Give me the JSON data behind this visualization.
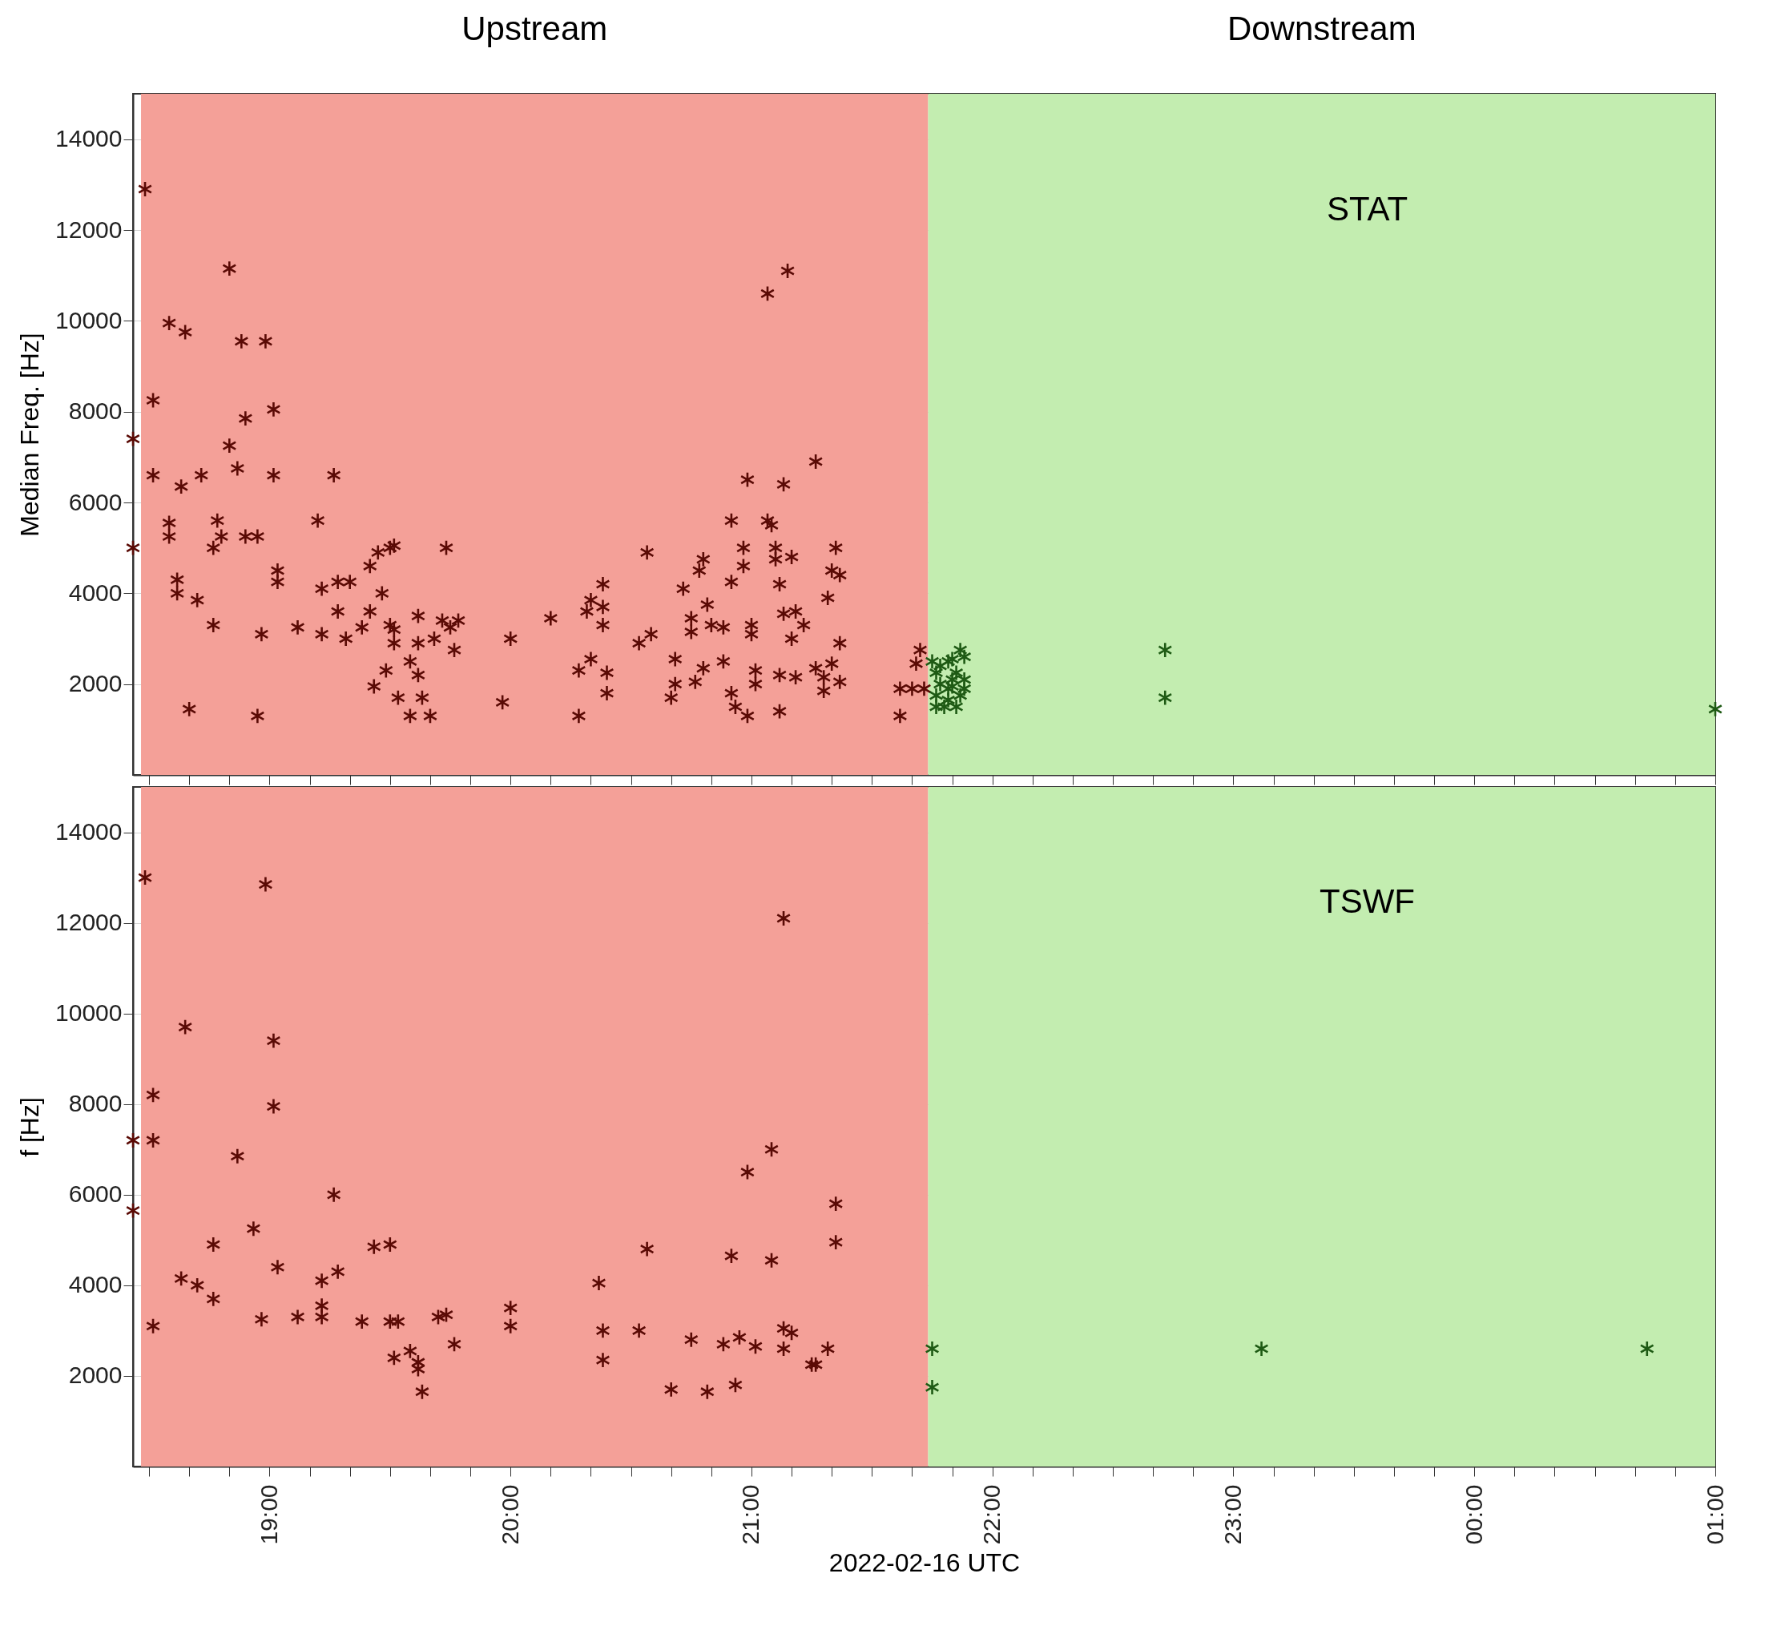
{
  "chart_data": [
    {
      "type": "scatter",
      "ylabel": "Median Freq. [Hz]",
      "annotations": [
        "STAT"
      ],
      "marker": "cross",
      "grid": true,
      "tick_labels": "y",
      "xlim": [
        "2022-02-16T18:26",
        "2022-02-17T01:00"
      ],
      "ylim": [
        0,
        15000
      ],
      "xticks": [
        {
          "value": "2022-02-16T18:30",
          "label": null
        },
        {
          "value": "2022-02-16T18:40",
          "label": null
        },
        {
          "value": "2022-02-16T18:50",
          "label": null
        },
        {
          "value": "2022-02-16T19:00",
          "label": null
        },
        {
          "value": "2022-02-16T19:10",
          "label": null
        },
        {
          "value": "2022-02-16T19:20",
          "label": null
        },
        {
          "value": "2022-02-16T19:30",
          "label": null
        },
        {
          "value": "2022-02-16T19:40",
          "label": null
        },
        {
          "value": "2022-02-16T19:50",
          "label": null
        },
        {
          "value": "2022-02-16T20:00",
          "label": null
        },
        {
          "value": "2022-02-16T20:10",
          "label": null
        },
        {
          "value": "2022-02-16T20:20",
          "label": null
        },
        {
          "value": "2022-02-16T20:30",
          "label": null
        },
        {
          "value": "2022-02-16T20:40",
          "label": null
        },
        {
          "value": "2022-02-16T20:50",
          "label": null
        },
        {
          "value": "2022-02-16T21:00",
          "label": null
        },
        {
          "value": "2022-02-16T21:10",
          "label": null
        },
        {
          "value": "2022-02-16T21:20",
          "label": null
        },
        {
          "value": "2022-02-16T21:30",
          "label": null
        },
        {
          "value": "2022-02-16T21:40",
          "label": null
        },
        {
          "value": "2022-02-16T21:50",
          "label": null
        },
        {
          "value": "2022-02-16T22:00",
          "label": null
        },
        {
          "value": "2022-02-16T22:10",
          "label": null
        },
        {
          "value": "2022-02-16T22:20",
          "label": null
        },
        {
          "value": "2022-02-16T22:30",
          "label": null
        },
        {
          "value": "2022-02-16T22:40",
          "label": null
        },
        {
          "value": "2022-02-16T22:50",
          "label": null
        },
        {
          "value": "2022-02-16T23:00",
          "label": null
        },
        {
          "value": "2022-02-16T23:10",
          "label": null
        },
        {
          "value": "2022-02-16T23:20",
          "label": null
        },
        {
          "value": "2022-02-16T23:30",
          "label": null
        },
        {
          "value": "2022-02-16T23:40",
          "label": null
        },
        {
          "value": "2022-02-16T23:50",
          "label": null
        },
        {
          "value": "2022-02-17T00:00",
          "label": null
        },
        {
          "value": "2022-02-17T00:10",
          "label": null
        },
        {
          "value": "2022-02-17T00:20",
          "label": null
        },
        {
          "value": "2022-02-17T00:30",
          "label": null
        },
        {
          "value": "2022-02-17T00:40",
          "label": null
        },
        {
          "value": "2022-02-17T00:50",
          "label": null
        },
        {
          "value": "2022-02-17T01:00",
          "label": null
        }
      ],
      "yticks": [
        2000,
        4000,
        6000,
        8000,
        10000,
        12000,
        14000
      ],
      "bands": [
        {
          "axis": "x",
          "from": "2022-02-16T18:28",
          "to": "2022-02-16T21:44",
          "label": "Upstream",
          "color": "#f4a098"
        },
        {
          "axis": "x",
          "from": "2022-02-16T21:44",
          "to": "2022-02-17T01:00",
          "label": "Downstream",
          "color": "#c3edb0"
        }
      ],
      "series": [
        {
          "color": "#5a0a05",
          "x": [
            "2022-02-16T18:26",
            "2022-02-16T18:26",
            "2022-02-16T18:29",
            "2022-02-16T18:31",
            "2022-02-16T18:31",
            "2022-02-16T18:35",
            "2022-02-16T18:35",
            "2022-02-16T18:35",
            "2022-02-16T18:37",
            "2022-02-16T18:37",
            "2022-02-16T18:40",
            "2022-02-16T18:39",
            "2022-02-16T18:38",
            "2022-02-16T18:42",
            "2022-02-16T18:43",
            "2022-02-16T18:46",
            "2022-02-16T18:46",
            "2022-02-16T18:47",
            "2022-02-16T18:48",
            "2022-02-16T18:50",
            "2022-02-16T18:50",
            "2022-02-16T18:52",
            "2022-02-16T18:54",
            "2022-02-16T18:53",
            "2022-02-16T18:54",
            "2022-02-16T18:57",
            "2022-02-16T18:57",
            "2022-02-16T18:58",
            "2022-02-16T18:59",
            "2022-02-16T19:01",
            "2022-02-16T19:01",
            "2022-02-16T19:02",
            "2022-02-16T19:02",
            "2022-02-16T19:07",
            "2022-02-16T19:12",
            "2022-02-16T19:13",
            "2022-02-16T19:13",
            "2022-02-16T19:16",
            "2022-02-16T19:17",
            "2022-02-16T19:17",
            "2022-02-16T19:19",
            "2022-02-16T19:20",
            "2022-02-16T19:23",
            "2022-02-16T19:25",
            "2022-02-16T19:25",
            "2022-02-16T19:26",
            "2022-02-16T19:27",
            "2022-02-16T19:28",
            "2022-02-16T19:29",
            "2022-02-16T19:30",
            "2022-02-16T19:31",
            "2022-02-16T19:31",
            "2022-02-16T19:31",
            "2022-02-16T19:30",
            "2022-02-16T19:32",
            "2022-02-16T19:35",
            "2022-02-16T19:35",
            "2022-02-16T19:37",
            "2022-02-16T19:37",
            "2022-02-16T19:38",
            "2022-02-16T19:40",
            "2022-02-16T19:37",
            "2022-02-16T19:41",
            "2022-02-16T19:43",
            "2022-02-16T19:44",
            "2022-02-16T19:45",
            "2022-02-16T19:46",
            "2022-02-16T19:47",
            "2022-02-16T19:58",
            "2022-02-16T20:00",
            "2022-02-16T20:10",
            "2022-02-16T20:17",
            "2022-02-16T20:17",
            "2022-02-16T20:19",
            "2022-02-16T20:20",
            "2022-02-16T20:20",
            "2022-02-16T20:23",
            "2022-02-16T20:23",
            "2022-02-16T20:23",
            "2022-02-16T20:24",
            "2022-02-16T20:24",
            "2022-02-16T20:32",
            "2022-02-16T20:34",
            "2022-02-16T20:35",
            "2022-02-16T20:40",
            "2022-02-16T20:41",
            "2022-02-16T20:41",
            "2022-02-16T20:43",
            "2022-02-16T20:45",
            "2022-02-16T20:45",
            "2022-02-16T20:46",
            "2022-02-16T20:47",
            "2022-02-16T20:48",
            "2022-02-16T20:48",
            "2022-02-16T20:49",
            "2022-02-16T20:50",
            "2022-02-16T20:53",
            "2022-02-16T20:53",
            "2022-02-16T20:55",
            "2022-02-16T20:55",
            "2022-02-16T20:55",
            "2022-02-16T20:56",
            "2022-02-16T20:58",
            "2022-02-16T20:58",
            "2022-02-16T20:59",
            "2022-02-16T20:59",
            "2022-02-16T21:00",
            "2022-02-16T21:00",
            "2022-02-16T21:01",
            "2022-02-16T21:01",
            "2022-02-16T21:04",
            "2022-02-16T21:04",
            "2022-02-16T21:05",
            "2022-02-16T21:06",
            "2022-02-16T21:06",
            "2022-02-16T21:07",
            "2022-02-16T21:07",
            "2022-02-16T21:07",
            "2022-02-16T21:08",
            "2022-02-16T21:08",
            "2022-02-16T21:09",
            "2022-02-16T21:10",
            "2022-02-16T21:10",
            "2022-02-16T21:11",
            "2022-02-16T21:11",
            "2022-02-16T21:13",
            "2022-02-16T21:16",
            "2022-02-16T21:16",
            "2022-02-16T21:18",
            "2022-02-16T21:18",
            "2022-02-16T21:19",
            "2022-02-16T21:20",
            "2022-02-16T21:20",
            "2022-02-16T21:21",
            "2022-02-16T21:22",
            "2022-02-16T21:22",
            "2022-02-16T21:22",
            "2022-02-16T21:37",
            "2022-02-16T21:37",
            "2022-02-16T21:40",
            "2022-02-16T21:41",
            "2022-02-16T21:42",
            "2022-02-16T21:43"
          ],
          "values": [
            7400,
            5000,
            12900,
            8250,
            6600,
            9950,
            5550,
            5250,
            4300,
            4000,
            1450,
            9750,
            6350,
            3850,
            6600,
            3300,
            5000,
            5600,
            5250,
            11150,
            7250,
            6750,
            7850,
            9550,
            5250,
            5250,
            1300,
            3100,
            9550,
            8050,
            6600,
            4500,
            4250,
            3250,
            5600,
            4100,
            3100,
            6600,
            3600,
            4250,
            3000,
            4250,
            3250,
            4600,
            3600,
            1950,
            4900,
            4000,
            2300,
            3300,
            5050,
            3200,
            2900,
            5000,
            1700,
            2500,
            1300,
            2200,
            2900,
            1700,
            1300,
            3500,
            3000,
            3400,
            5000,
            3250,
            2750,
            3400,
            1600,
            3000,
            3450,
            2300,
            1300,
            3600,
            2550,
            3850,
            4200,
            3300,
            3700,
            2250,
            1800,
            2900,
            4900,
            3100,
            1700,
            2000,
            2550,
            4100,
            3450,
            3150,
            2050,
            4500,
            4750,
            2350,
            3750,
            3300,
            2500,
            3250,
            4250,
            5600,
            1800,
            1500,
            4600,
            5000,
            6500,
            1300,
            3300,
            3100,
            2000,
            2300,
            5600,
            10600,
            5500,
            5000,
            4750,
            4200,
            2200,
            1400,
            6400,
            3550,
            11100,
            4800,
            3000,
            2150,
            3600,
            3300,
            6900,
            2350,
            2150,
            1850,
            3900,
            2450,
            4500,
            5000,
            4400,
            2900,
            2050,
            1900,
            1300,
            1900,
            2450,
            2750,
            1900
          ]
        },
        {
          "color": "#1e5a14",
          "x": [
            "2022-02-16T21:45",
            "2022-02-16T21:46",
            "2022-02-16T21:47",
            "2022-02-16T21:46",
            "2022-02-16T21:48",
            "2022-02-16T21:49",
            "2022-02-16T21:50",
            "2022-02-16T21:49",
            "2022-02-16T21:50",
            "2022-02-16T21:51",
            "2022-02-16T21:52",
            "2022-02-16T21:53",
            "2022-02-16T21:53",
            "2022-02-16T21:52",
            "2022-02-16T21:53",
            "2022-02-16T21:46",
            "2022-02-16T21:49",
            "2022-02-16T21:50",
            "2022-02-16T21:47",
            "2022-02-16T21:51",
            "2022-02-16T22:43",
            "2022-02-16T22:43",
            "2022-02-17T01:00"
          ],
          "values": [
            2500,
            2250,
            2000,
            1750,
            1500,
            2500,
            2100,
            1900,
            2550,
            2250,
            1750,
            2600,
            1900,
            2750,
            2100,
            1500,
            1650,
            1950,
            2400,
            1500,
            2750,
            1700,
            1450
          ]
        }
      ]
    },
    {
      "type": "scatter",
      "ylabel": "f [Hz]",
      "xlabel": "2022-02-16 UTC",
      "annotations": [
        "TSWF"
      ],
      "marker": "cross",
      "grid": true,
      "xlim": [
        "2022-02-16T18:26",
        "2022-02-17T01:00"
      ],
      "ylim": [
        0,
        15000
      ],
      "xticks": [
        {
          "value": "2022-02-16T18:30",
          "label": null
        },
        {
          "value": "2022-02-16T18:40",
          "label": null
        },
        {
          "value": "2022-02-16T18:50",
          "label": null
        },
        {
          "value": "2022-02-16T19:00",
          "label": "19:00"
        },
        {
          "value": "2022-02-16T19:10",
          "label": null
        },
        {
          "value": "2022-02-16T19:20",
          "label": null
        },
        {
          "value": "2022-02-16T19:30",
          "label": null
        },
        {
          "value": "2022-02-16T19:40",
          "label": null
        },
        {
          "value": "2022-02-16T19:50",
          "label": null
        },
        {
          "value": "2022-02-16T20:00",
          "label": "20:00"
        },
        {
          "value": "2022-02-16T20:10",
          "label": null
        },
        {
          "value": "2022-02-16T20:20",
          "label": null
        },
        {
          "value": "2022-02-16T20:30",
          "label": null
        },
        {
          "value": "2022-02-16T20:40",
          "label": null
        },
        {
          "value": "2022-02-16T20:50",
          "label": null
        },
        {
          "value": "2022-02-16T21:00",
          "label": "21:00"
        },
        {
          "value": "2022-02-16T21:10",
          "label": null
        },
        {
          "value": "2022-02-16T21:20",
          "label": null
        },
        {
          "value": "2022-02-16T21:30",
          "label": null
        },
        {
          "value": "2022-02-16T21:40",
          "label": null
        },
        {
          "value": "2022-02-16T21:50",
          "label": null
        },
        {
          "value": "2022-02-16T22:00",
          "label": "22:00"
        },
        {
          "value": "2022-02-16T22:10",
          "label": null
        },
        {
          "value": "2022-02-16T22:20",
          "label": null
        },
        {
          "value": "2022-02-16T22:30",
          "label": null
        },
        {
          "value": "2022-02-16T22:40",
          "label": null
        },
        {
          "value": "2022-02-16T22:50",
          "label": null
        },
        {
          "value": "2022-02-16T23:00",
          "label": "23:00"
        },
        {
          "value": "2022-02-16T23:10",
          "label": null
        },
        {
          "value": "2022-02-16T23:20",
          "label": null
        },
        {
          "value": "2022-02-16T23:30",
          "label": null
        },
        {
          "value": "2022-02-16T23:40",
          "label": null
        },
        {
          "value": "2022-02-16T23:50",
          "label": null
        },
        {
          "value": "2022-02-17T00:00",
          "label": "00:00"
        },
        {
          "value": "2022-02-17T00:10",
          "label": null
        },
        {
          "value": "2022-02-17T00:20",
          "label": null
        },
        {
          "value": "2022-02-17T00:30",
          "label": null
        },
        {
          "value": "2022-02-17T00:40",
          "label": null
        },
        {
          "value": "2022-02-17T00:50",
          "label": null
        },
        {
          "value": "2022-02-17T01:00",
          "label": "01:00"
        }
      ],
      "yticks": [
        2000,
        4000,
        6000,
        8000,
        10000,
        12000,
        14000
      ],
      "bands": [
        {
          "axis": "x",
          "from": "2022-02-16T18:28",
          "to": "2022-02-16T21:44",
          "color": "#f4a098"
        },
        {
          "axis": "x",
          "from": "2022-02-16T21:44",
          "to": "2022-02-17T01:00",
          "color": "#c3edb0"
        }
      ],
      "series": [
        {
          "color": "#5a0a05",
          "x": [
            "2022-02-16T18:26",
            "2022-02-16T18:26",
            "2022-02-16T18:29",
            "2022-02-16T18:31",
            "2022-02-16T18:31",
            "2022-02-16T18:31",
            "2022-02-16T18:38",
            "2022-02-16T18:39",
            "2022-02-16T18:42",
            "2022-02-16T18:46",
            "2022-02-16T18:46",
            "2022-02-16T18:52",
            "2022-02-16T18:56",
            "2022-02-16T18:58",
            "2022-02-16T18:59",
            "2022-02-16T19:01",
            "2022-02-16T19:01",
            "2022-02-16T19:02",
            "2022-02-16T19:07",
            "2022-02-16T19:13",
            "2022-02-16T19:13",
            "2022-02-16T19:13",
            "2022-02-16T19:16",
            "2022-02-16T19:17",
            "2022-02-16T19:23",
            "2022-02-16T19:26",
            "2022-02-16T19:30",
            "2022-02-16T19:30",
            "2022-02-16T19:31",
            "2022-02-16T19:32",
            "2022-02-16T19:35",
            "2022-02-16T19:37",
            "2022-02-16T19:37",
            "2022-02-16T19:38",
            "2022-02-16T19:42",
            "2022-02-16T19:44",
            "2022-02-16T19:46",
            "2022-02-16T20:00",
            "2022-02-16T20:00",
            "2022-02-16T20:22",
            "2022-02-16T20:23",
            "2022-02-16T20:23",
            "2022-02-16T20:32",
            "2022-02-16T20:34",
            "2022-02-16T20:40",
            "2022-02-16T20:45",
            "2022-02-16T20:49",
            "2022-02-16T20:53",
            "2022-02-16T20:55",
            "2022-02-16T20:56",
            "2022-02-16T20:57",
            "2022-02-16T20:59",
            "2022-02-16T21:01",
            "2022-02-16T21:05",
            "2022-02-16T21:05",
            "2022-02-16T21:08",
            "2022-02-16T21:08",
            "2022-02-16T21:10",
            "2022-02-16T21:08",
            "2022-02-16T21:15",
            "2022-02-16T21:16",
            "2022-02-16T21:19",
            "2022-02-16T21:21",
            "2022-02-16T21:21"
          ],
          "values": [
            7200,
            5650,
            13000,
            8200,
            7200,
            3100,
            4150,
            9700,
            4000,
            4900,
            3700,
            6850,
            5250,
            3250,
            12850,
            9400,
            7950,
            4400,
            3300,
            4100,
            3550,
            3300,
            6000,
            4300,
            3200,
            4850,
            4900,
            3200,
            2400,
            3200,
            2550,
            2300,
            2150,
            1650,
            3300,
            3350,
            2700,
            3500,
            3100,
            4050,
            3000,
            2350,
            3000,
            4800,
            1700,
            2800,
            1650,
            2700,
            4650,
            1800,
            2850,
            6500,
            2650,
            4550,
            7000,
            3050,
            12100,
            2950,
            2600,
            2250,
            2250,
            2600,
            4950,
            5800
          ]
        },
        {
          "color": "#1e5a14",
          "x": [
            "2022-02-16T21:45",
            "2022-02-16T21:45",
            "2022-02-16T23:07",
            "2022-02-17T00:43"
          ],
          "values": [
            2600,
            1750,
            2600,
            2600
          ]
        }
      ]
    }
  ]
}
